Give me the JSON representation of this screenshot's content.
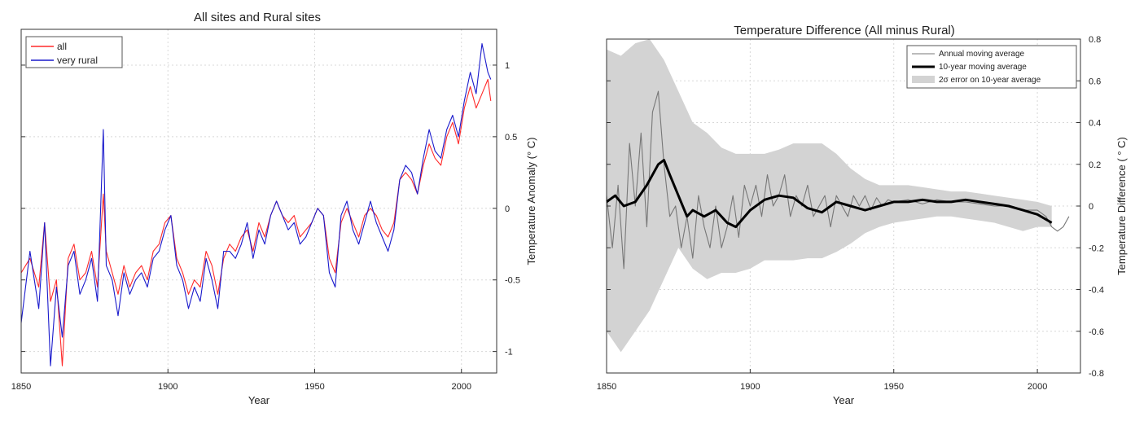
{
  "chart_data": [
    {
      "type": "line",
      "title": "All sites and Rural sites",
      "xlabel": "Year",
      "ylabel": "Temperature Anomaly (° C)",
      "xlim": [
        1850,
        2012
      ],
      "ylim": [
        -1.15,
        1.25
      ],
      "xticks": [
        "1850",
        "1900",
        "1950",
        "2000"
      ],
      "yticks": [
        "-1",
        "-0.5",
        "0",
        "0.5",
        "1"
      ],
      "grid": true,
      "legend_placement": "top-left",
      "series": [
        {
          "name": "all",
          "color": "#ff2a2a",
          "x": [
            1850,
            1853,
            1856,
            1858,
            1860,
            1862,
            1864,
            1866,
            1868,
            1870,
            1872,
            1874,
            1876,
            1878,
            1879,
            1881,
            1883,
            1885,
            1887,
            1889,
            1891,
            1893,
            1895,
            1897,
            1899,
            1901,
            1903,
            1905,
            1907,
            1909,
            1911,
            1913,
            1915,
            1917,
            1919,
            1921,
            1923,
            1925,
            1927,
            1929,
            1931,
            1933,
            1935,
            1937,
            1939,
            1941,
            1943,
            1945,
            1947,
            1949,
            1951,
            1953,
            1955,
            1957,
            1959,
            1961,
            1963,
            1965,
            1967,
            1969,
            1971,
            1973,
            1975,
            1977,
            1979,
            1981,
            1983,
            1985,
            1987,
            1989,
            1991,
            1993,
            1995,
            1997,
            1999,
            2001,
            2003,
            2005,
            2007,
            2009,
            2010
          ],
          "y": [
            -0.45,
            -0.35,
            -0.55,
            -0.1,
            -0.65,
            -0.5,
            -1.1,
            -0.35,
            -0.25,
            -0.5,
            -0.45,
            -0.3,
            -0.55,
            0.1,
            -0.3,
            -0.45,
            -0.6,
            -0.4,
            -0.55,
            -0.45,
            -0.4,
            -0.5,
            -0.3,
            -0.25,
            -0.1,
            -0.05,
            -0.35,
            -0.45,
            -0.6,
            -0.5,
            -0.55,
            -0.3,
            -0.4,
            -0.6,
            -0.35,
            -0.25,
            -0.3,
            -0.2,
            -0.15,
            -0.3,
            -0.1,
            -0.2,
            -0.05,
            0.05,
            -0.05,
            -0.1,
            -0.05,
            -0.2,
            -0.15,
            -0.1,
            0.0,
            -0.05,
            -0.35,
            -0.45,
            -0.1,
            0.0,
            -0.1,
            -0.2,
            -0.05,
            0.0,
            -0.05,
            -0.15,
            -0.2,
            -0.1,
            0.2,
            0.25,
            0.2,
            0.1,
            0.3,
            0.45,
            0.35,
            0.3,
            0.5,
            0.6,
            0.45,
            0.7,
            0.85,
            0.7,
            0.8,
            0.9,
            0.75
          ]
        },
        {
          "name": "very rural",
          "color": "#1a1acc",
          "x": [
            1850,
            1853,
            1856,
            1858,
            1860,
            1862,
            1864,
            1866,
            1868,
            1870,
            1872,
            1874,
            1876,
            1878,
            1879,
            1881,
            1883,
            1885,
            1887,
            1889,
            1891,
            1893,
            1895,
            1897,
            1899,
            1901,
            1903,
            1905,
            1907,
            1909,
            1911,
            1913,
            1915,
            1917,
            1919,
            1921,
            1923,
            1925,
            1927,
            1929,
            1931,
            1933,
            1935,
            1937,
            1939,
            1941,
            1943,
            1945,
            1947,
            1949,
            1951,
            1953,
            1955,
            1957,
            1959,
            1961,
            1963,
            1965,
            1967,
            1969,
            1971,
            1973,
            1975,
            1977,
            1979,
            1981,
            1983,
            1985,
            1987,
            1989,
            1991,
            1993,
            1995,
            1997,
            1999,
            2001,
            2003,
            2005,
            2007,
            2009,
            2010
          ],
          "y": [
            -0.8,
            -0.3,
            -0.7,
            -0.1,
            -1.1,
            -0.55,
            -0.9,
            -0.4,
            -0.3,
            -0.6,
            -0.5,
            -0.35,
            -0.65,
            0.55,
            -0.4,
            -0.5,
            -0.75,
            -0.45,
            -0.6,
            -0.5,
            -0.45,
            -0.55,
            -0.35,
            -0.3,
            -0.15,
            -0.05,
            -0.4,
            -0.5,
            -0.7,
            -0.55,
            -0.65,
            -0.35,
            -0.5,
            -0.7,
            -0.3,
            -0.3,
            -0.35,
            -0.25,
            -0.1,
            -0.35,
            -0.15,
            -0.25,
            -0.05,
            0.05,
            -0.05,
            -0.15,
            -0.1,
            -0.25,
            -0.2,
            -0.1,
            0.0,
            -0.05,
            -0.45,
            -0.55,
            -0.05,
            0.05,
            -0.15,
            -0.25,
            -0.1,
            0.05,
            -0.1,
            -0.2,
            -0.3,
            -0.15,
            0.2,
            0.3,
            0.25,
            0.1,
            0.35,
            0.55,
            0.4,
            0.35,
            0.55,
            0.65,
            0.5,
            0.75,
            0.95,
            0.8,
            1.15,
            0.95,
            0.9
          ]
        }
      ]
    },
    {
      "type": "line",
      "title": "Temperature Difference (All minus Rural)",
      "xlabel": "Year",
      "ylabel": "Temperature Difference ( ° C)",
      "xlim": [
        1850,
        2015
      ],
      "ylim": [
        -0.8,
        0.8
      ],
      "xticks": [
        "1850",
        "1900",
        "1950",
        "2000"
      ],
      "yticks": [
        "-0.8",
        "-0.6",
        "-0.4",
        "-0.2",
        "0",
        "0.2",
        "0.4",
        "0.6",
        "0.8"
      ],
      "grid": true,
      "legend_placement": "top-right",
      "legend_entries": [
        "Annual moving average",
        "10-year moving average",
        "2σ error on 10-year average"
      ],
      "band": {
        "name": "2σ error on 10-year average",
        "color": "#d3d3d3",
        "x": [
          1850,
          1855,
          1860,
          1865,
          1870,
          1875,
          1880,
          1885,
          1890,
          1895,
          1900,
          1905,
          1910,
          1915,
          1920,
          1925,
          1930,
          1935,
          1940,
          1945,
          1950,
          1955,
          1960,
          1965,
          1970,
          1975,
          1980,
          1985,
          1990,
          1995,
          2000,
          2005
        ],
        "upper": [
          0.75,
          0.72,
          0.78,
          0.8,
          0.7,
          0.55,
          0.4,
          0.35,
          0.28,
          0.25,
          0.25,
          0.25,
          0.27,
          0.3,
          0.3,
          0.3,
          0.25,
          0.18,
          0.13,
          0.1,
          0.1,
          0.1,
          0.09,
          0.08,
          0.07,
          0.07,
          0.06,
          0.05,
          0.04,
          0.03,
          0.02,
          0.0
        ],
        "lower": [
          -0.6,
          -0.7,
          -0.6,
          -0.5,
          -0.35,
          -0.2,
          -0.3,
          -0.35,
          -0.32,
          -0.32,
          -0.3,
          -0.26,
          -0.26,
          -0.26,
          -0.25,
          -0.25,
          -0.22,
          -0.18,
          -0.13,
          -0.1,
          -0.08,
          -0.07,
          -0.06,
          -0.05,
          -0.05,
          -0.06,
          -0.07,
          -0.08,
          -0.1,
          -0.12,
          -0.1,
          -0.1
        ]
      },
      "series": [
        {
          "name": "Annual moving average",
          "color": "#777777",
          "x": [
            1850,
            1852,
            1854,
            1856,
            1858,
            1860,
            1862,
            1864,
            1866,
            1868,
            1870,
            1872,
            1874,
            1876,
            1878,
            1880,
            1882,
            1884,
            1886,
            1888,
            1890,
            1892,
            1894,
            1896,
            1898,
            1900,
            1902,
            1904,
            1906,
            1908,
            1910,
            1912,
            1914,
            1916,
            1918,
            1920,
            1922,
            1924,
            1926,
            1928,
            1930,
            1932,
            1934,
            1936,
            1938,
            1940,
            1942,
            1944,
            1946,
            1948,
            1950,
            1955,
            1960,
            1965,
            1970,
            1975,
            1980,
            1985,
            1990,
            1995,
            2000,
            2003,
            2005,
            2007,
            2009,
            2011
          ],
          "y": [
            0.05,
            -0.2,
            0.1,
            -0.3,
            0.3,
            0.0,
            0.35,
            -0.1,
            0.45,
            0.55,
            0.2,
            -0.05,
            0.0,
            -0.2,
            -0.05,
            -0.25,
            0.05,
            -0.1,
            -0.2,
            0.0,
            -0.2,
            -0.1,
            0.05,
            -0.15,
            0.1,
            0.0,
            0.1,
            -0.05,
            0.15,
            0.0,
            0.05,
            0.15,
            -0.05,
            0.05,
            0.0,
            0.1,
            -0.05,
            0.0,
            0.05,
            -0.1,
            0.05,
            0.0,
            -0.05,
            0.05,
            0.0,
            0.05,
            -0.02,
            0.04,
            0.0,
            0.03,
            0.02,
            0.03,
            0.01,
            0.03,
            0.02,
            0.02,
            0.01,
            0.0,
            0.0,
            -0.02,
            -0.02,
            -0.05,
            -0.1,
            -0.12,
            -0.1,
            -0.05
          ]
        },
        {
          "name": "10-year moving average",
          "color": "#000000",
          "x": [
            1850,
            1853,
            1856,
            1860,
            1864,
            1868,
            1870,
            1872,
            1875,
            1878,
            1880,
            1884,
            1888,
            1892,
            1895,
            1900,
            1905,
            1910,
            1915,
            1920,
            1925,
            1930,
            1935,
            1940,
            1945,
            1950,
            1955,
            1960,
            1965,
            1970,
            1975,
            1980,
            1985,
            1990,
            1995,
            2000,
            2005
          ],
          "y": [
            0.02,
            0.05,
            0.0,
            0.02,
            0.1,
            0.2,
            0.22,
            0.15,
            0.05,
            -0.05,
            -0.02,
            -0.05,
            -0.02,
            -0.08,
            -0.1,
            -0.02,
            0.03,
            0.05,
            0.04,
            -0.01,
            -0.03,
            0.02,
            0.0,
            -0.02,
            0.0,
            0.02,
            0.02,
            0.03,
            0.02,
            0.02,
            0.03,
            0.02,
            0.01,
            0.0,
            -0.02,
            -0.04,
            -0.08
          ]
        }
      ]
    }
  ]
}
